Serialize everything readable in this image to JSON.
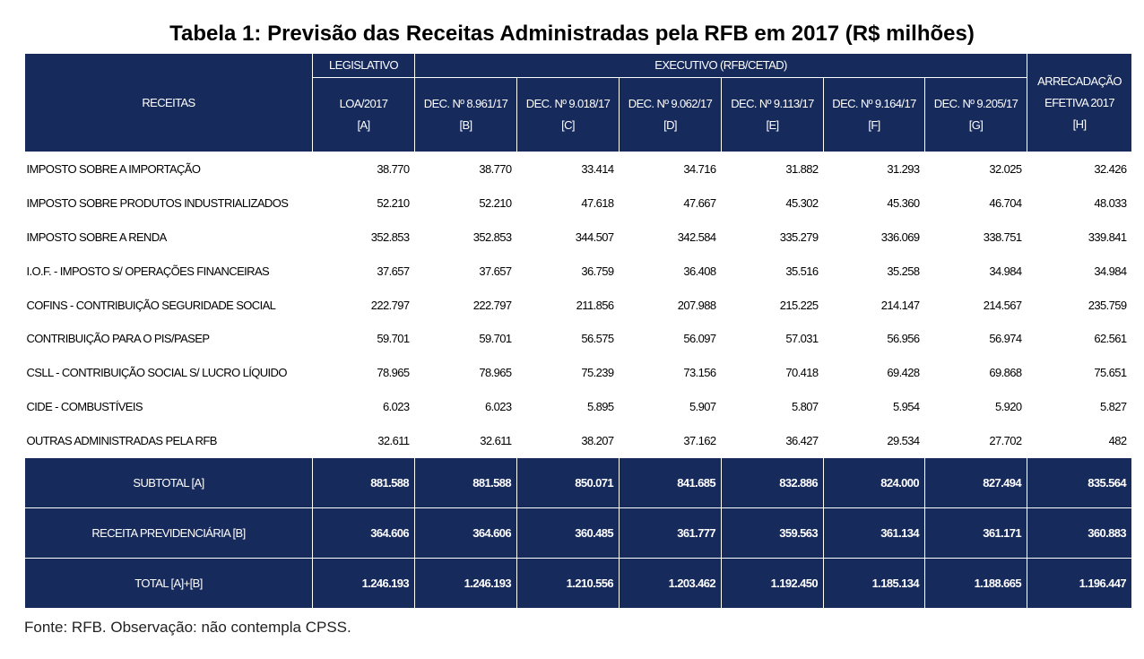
{
  "header": {
    "title": "Tabela 1: Previsão das Receitas Administradas pela RFB em 2017 (R$ milhões)"
  },
  "table": {
    "head": {
      "receitas": "RECEITAS",
      "legislativo": "LEGISLATIVO",
      "executivo": "EXECUTIVO (RFB/CETAD)",
      "columns": [
        [
          "LOA/2017",
          "[A]"
        ],
        [
          "DEC. Nº 8.961/17",
          "[B]"
        ],
        [
          "DEC. Nº 9.018/17",
          "[C]"
        ],
        [
          "DEC. Nº 9.062/17",
          "[D]"
        ],
        [
          "DEC. Nº 9.113/17",
          "[E]"
        ],
        [
          "DEC. Nº 9.164/17",
          "[F]"
        ],
        [
          "DEC. Nº 9.205/17",
          "[G]"
        ],
        [
          "ARRECADAÇÃO",
          "EFETIVA 2017",
          "[H]"
        ]
      ]
    },
    "rows": [
      {
        "label": "IMPOSTO SOBRE A IMPORTAÇÃO",
        "values": [
          "38.770",
          "38.770",
          "33.414",
          "34.716",
          "31.882",
          "31.293",
          "32.025",
          "32.426"
        ]
      },
      {
        "label": "IMPOSTO SOBRE PRODUTOS INDUSTRIALIZADOS",
        "values": [
          "52.210",
          "52.210",
          "47.618",
          "47.667",
          "45.302",
          "45.360",
          "46.704",
          "48.033"
        ]
      },
      {
        "label": "IMPOSTO SOBRE A RENDA",
        "values": [
          "352.853",
          "352.853",
          "344.507",
          "342.584",
          "335.279",
          "336.069",
          "338.751",
          "339.841"
        ]
      },
      {
        "label": "I.O.F. - IMPOSTO S/ OPERAÇÕES FINANCEIRAS",
        "values": [
          "37.657",
          "37.657",
          "36.759",
          "36.408",
          "35.516",
          "35.258",
          "34.984",
          "34.984"
        ]
      },
      {
        "label": "COFINS - CONTRIBUIÇÃO SEGURIDADE SOCIAL",
        "values": [
          "222.797",
          "222.797",
          "211.856",
          "207.988",
          "215.225",
          "214.147",
          "214.567",
          "235.759"
        ]
      },
      {
        "label": "CONTRIBUIÇÃO PARA O PIS/PASEP",
        "values": [
          "59.701",
          "59.701",
          "56.575",
          "56.097",
          "57.031",
          "56.956",
          "56.974",
          "62.561"
        ]
      },
      {
        "label": "CSLL - CONTRIBUIÇÃO SOCIAL S/ LUCRO LÍQUIDO",
        "values": [
          "78.965",
          "78.965",
          "75.239",
          "73.156",
          "70.418",
          "69.428",
          "69.868",
          "75.651"
        ]
      },
      {
        "label": "CIDE - COMBUSTÍVEIS",
        "values": [
          "6.023",
          "6.023",
          "5.895",
          "5.907",
          "5.807",
          "5.954",
          "5.920",
          "5.827"
        ]
      },
      {
        "label": "OUTRAS ADMINISTRADAS PELA RFB",
        "values": [
          "32.611",
          "32.611",
          "38.207",
          "37.162",
          "36.427",
          "29.534",
          "27.702",
          "482"
        ]
      }
    ],
    "totals": [
      {
        "label": "SUBTOTAL [A]",
        "values": [
          "881.588",
          "881.588",
          "850.071",
          "841.685",
          "832.886",
          "824.000",
          "827.494",
          "835.564"
        ]
      },
      {
        "label": "RECEITA PREVIDENCIÁRIA [B]",
        "values": [
          "364.606",
          "364.606",
          "360.485",
          "361.777",
          "359.563",
          "361.134",
          "361.171",
          "360.883"
        ]
      },
      {
        "label": "TOTAL [A]+[B]",
        "values": [
          "1.246.193",
          "1.246.193",
          "1.210.556",
          "1.203.462",
          "1.192.450",
          "1.185.134",
          "1.188.665",
          "1.196.447"
        ]
      }
    ]
  },
  "footer": {
    "note": "Fonte: RFB. Observação: não contempla CPSS."
  }
}
